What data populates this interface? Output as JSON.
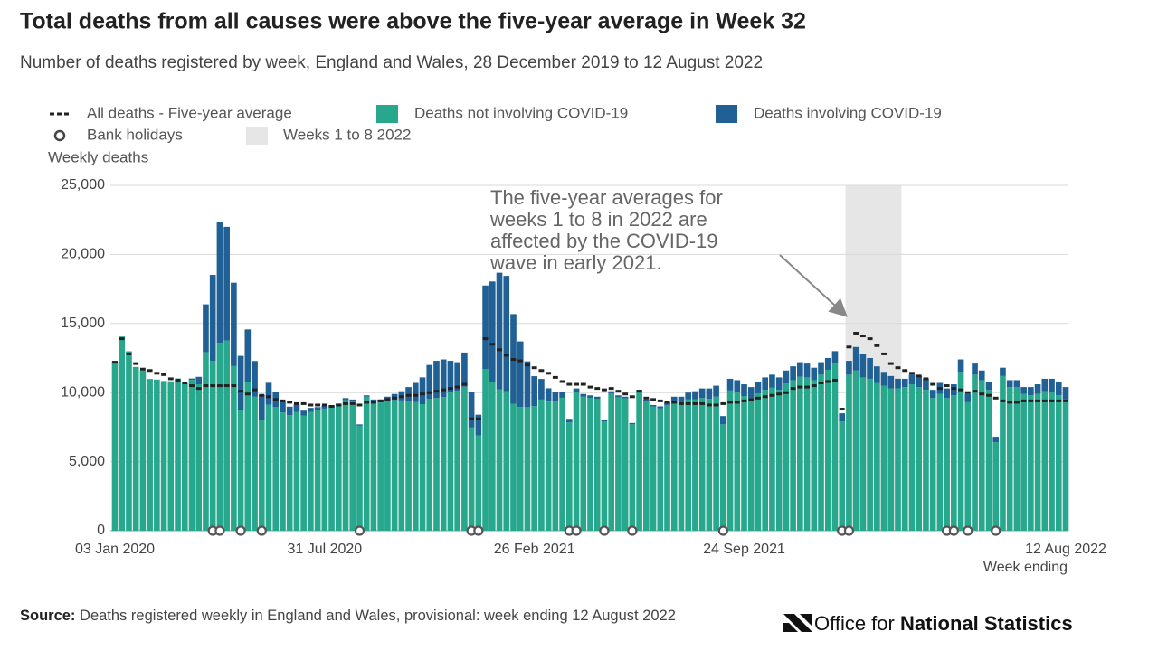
{
  "chart_data": {
    "type": "bar",
    "stacked": true,
    "title": "Total deaths from all causes were above the five-year average in Week 32",
    "subtitle": "Number of deaths registered by week, England and Wales, 28 December 2019 to 12 August 2022",
    "y_label": "Weekly deaths",
    "x_label": "Week ending",
    "categories": [
      "03 Jan 2020",
      null,
      null,
      null,
      null,
      null,
      null,
      null,
      null,
      null,
      null,
      null,
      null,
      null,
      null,
      null,
      null,
      null,
      null,
      null,
      null,
      null,
      null,
      null,
      null,
      null,
      null,
      null,
      null,
      null,
      "31 Jul 2020",
      null,
      null,
      null,
      null,
      null,
      null,
      null,
      null,
      null,
      null,
      null,
      null,
      null,
      null,
      null,
      null,
      null,
      null,
      null,
      null,
      null,
      null,
      null,
      null,
      null,
      null,
      null,
      null,
      null,
      "26 Feb 2021",
      null,
      null,
      null,
      null,
      null,
      null,
      null,
      null,
      null,
      null,
      null,
      null,
      null,
      null,
      null,
      null,
      null,
      null,
      null,
      null,
      null,
      null,
      null,
      null,
      null,
      null,
      null,
      null,
      null,
      "24 Sep 2021",
      null,
      null,
      null,
      null,
      null,
      null,
      null,
      null,
      null,
      null,
      null,
      null,
      null,
      null,
      null,
      null,
      null,
      null,
      null,
      null,
      null,
      null,
      null,
      null,
      null,
      null,
      null,
      null,
      null,
      null,
      null,
      null,
      null,
      null,
      null,
      null,
      null,
      null,
      null,
      null,
      null,
      null,
      null,
      null,
      null,
      "12 Aug 2022"
    ],
    "series": [
      {
        "name": "Deaths not involving COVID-19",
        "color": "#27a88d",
        "values": [
          12254,
          14058,
          12990,
          11856,
          11612,
          10986,
          10944,
          10841,
          10816,
          11019,
          10640,
          10916,
          10602,
          12912,
          12303,
          13593,
          13760,
          11918,
          8727,
          10763,
          9699,
          8002,
          9121,
          8945,
          8556,
          8373,
          8608,
          8324,
          8596,
          8729,
          8839,
          8926,
          9062,
          9461,
          9422,
          7599,
          9701,
          9361,
          9285,
          9379,
          9462,
          9430,
          9422,
          9321,
          9163,
          9534,
          9603,
          9669,
          10003,
          10139,
          10420,
          7469,
          6900,
          11694,
          10797,
          10243,
          10109,
          9194,
          8951,
          8944,
          9017,
          9495,
          9348,
          9355,
          9625,
          7838,
          10079,
          9700,
          9620,
          9530,
          7900,
          9950,
          9660,
          9590,
          7700,
          10100,
          9410,
          9000,
          8850,
          9100,
          9400,
          9300,
          9500,
          9500,
          9600,
          9550,
          9700,
          7700,
          10150,
          10000,
          9750,
          9600,
          9950,
          10200,
          10350,
          10200,
          10650,
          10900,
          11150,
          11100,
          10900,
          11300,
          11650,
          12100,
          7900,
          11300,
          11600,
          11100,
          11000,
          10700,
          10500,
          10300,
          10300,
          10400,
          10600,
          10400,
          10200,
          9600,
          9900,
          9600,
          9800,
          11500,
          9300,
          11300,
          10900,
          10200,
          6400,
          11200,
          10400,
          10400,
          9900,
          9800,
          9900,
          10100,
          10000,
          9800,
          9500
        ]
      },
      {
        "name": "Deaths involving COVID-19",
        "color": "#206095",
        "values": [
          0,
          0,
          0,
          0,
          0,
          0,
          0,
          0,
          0,
          0,
          5,
          103,
          539,
          3475,
          6213,
          8758,
          8237,
          6035,
          3930,
          3810,
          2589,
          1822,
          1588,
          1114,
          783,
          606,
          532,
          366,
          295,
          217,
          193,
          152,
          138,
          139,
          78,
          101,
          99,
          139,
          215,
          321,
          438,
          670,
          978,
          1379,
          1937,
          2466,
          2697,
          2731,
          2297,
          2061,
          2480,
          2600,
          1500,
          6057,
          7245,
          8433,
          8339,
          6488,
          4754,
          3318,
          2171,
          1492,
          963,
          690,
          425,
          262,
          221,
          200,
          180,
          170,
          100,
          150,
          140,
          110,
          100,
          100,
          90,
          100,
          150,
          200,
          300,
          400,
          500,
          600,
          700,
          750,
          800,
          600,
          850,
          900,
          850,
          800,
          850,
          900,
          950,
          900,
          950,
          1000,
          1050,
          1000,
          900,
          900,
          850,
          900,
          600,
          1000,
          1700,
          1700,
          1500,
          1200,
          1000,
          900,
          700,
          600,
          700,
          800,
          800,
          600,
          800,
          700,
          800,
          900,
          600,
          800,
          700,
          600,
          400,
          600,
          500,
          500,
          500,
          600,
          700,
          900,
          1000,
          1000,
          900
        ]
      }
    ],
    "average": {
      "name": "All deaths - Five-year average",
      "color": "#222222",
      "values": [
        12200,
        13900,
        12800,
        12100,
        11700,
        11600,
        11400,
        11300,
        11000,
        10900,
        10700,
        10500,
        10300,
        10500,
        10500,
        10500,
        10500,
        10500,
        10100,
        9900,
        10200,
        9800,
        9700,
        9500,
        9400,
        9300,
        9200,
        9200,
        9100,
        9100,
        9100,
        9000,
        9100,
        9200,
        9200,
        9100,
        9300,
        9300,
        9400,
        9500,
        9600,
        9700,
        9800,
        9800,
        9900,
        10000,
        10100,
        10200,
        10300,
        10400,
        10600,
        8100,
        8100,
        13900,
        13500,
        13100,
        12700,
        12400,
        12300,
        12000,
        11800,
        11600,
        11400,
        11100,
        10800,
        10600,
        10600,
        10600,
        10400,
        10300,
        10200,
        10300,
        10100,
        9900,
        9700,
        10100,
        9600,
        9500,
        9400,
        9300,
        9300,
        9200,
        9200,
        9200,
        9200,
        9100,
        9100,
        9200,
        9300,
        9300,
        9400,
        9500,
        9600,
        9700,
        9800,
        9900,
        10000,
        10300,
        10400,
        10400,
        10500,
        10700,
        10800,
        10900,
        8800,
        13300,
        14300,
        14100,
        13900,
        13400,
        12800,
        12100,
        11800,
        11600,
        11400,
        11200,
        11000,
        10600,
        10300,
        10500,
        10300,
        10200,
        10000,
        10100,
        9900,
        9800,
        9600,
        9400,
        9300,
        9300,
        9400,
        9400,
        9400,
        9400,
        9400,
        9400,
        9400
      ]
    },
    "bank_holidays": {
      "name": "Bank holidays",
      "weeks": [
        14,
        15,
        18,
        21,
        35,
        51,
        52,
        65,
        66,
        70,
        74,
        87,
        104,
        105,
        119,
        120,
        122,
        126
      ]
    },
    "shaded": {
      "name": "Weeks 1 to 8 2022",
      "color": "#e6e6e6",
      "from": 105,
      "to": 112
    },
    "annotation": [
      "The five-year averages for",
      "weeks 1 to 8 in 2022 are",
      "affected by the COVID-19",
      "wave in early 2021."
    ],
    "ylim": [
      0,
      25000
    ],
    "yticks": [
      0,
      {
        "value": 5000,
        "label": "5,000"
      },
      {
        "value": 10000,
        "label": "10,000"
      },
      {
        "value": 15000,
        "label": "15,000"
      },
      {
        "value": 20000,
        "label": "20,000"
      },
      {
        "value": 25000,
        "label": "25,000"
      }
    ],
    "grid": true
  },
  "source": {
    "label": "Source:",
    "text": "Deaths registered weekly in England and Wales, provisional: week ending 12 August 2022"
  },
  "logo": {
    "plain": "Office for",
    "bold": "National Statistics"
  }
}
